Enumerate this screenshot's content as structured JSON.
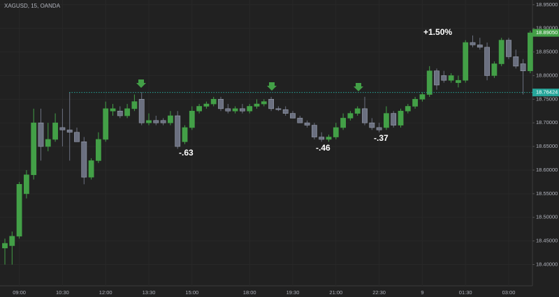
{
  "chart_data": {
    "type": "candlestick",
    "title": "XAGUSD, 15, OANDA",
    "up_color": "#43a047",
    "down_color": "#6b7080",
    "grid": true,
    "ylim": [
      18.355,
      18.96
    ],
    "yticks": [
      {
        "value": 18.4,
        "label": "18.40000"
      },
      {
        "value": 18.45,
        "label": "18.45000"
      },
      {
        "value": 18.5,
        "label": "18.50000"
      },
      {
        "value": 18.55,
        "label": "18.55000"
      },
      {
        "value": 18.6,
        "label": "18.60000"
      },
      {
        "value": 18.65,
        "label": "18.65000"
      },
      {
        "value": 18.7,
        "label": "18.70000"
      },
      {
        "value": 18.75,
        "label": "18.75000"
      },
      {
        "value": 18.8,
        "label": "18.80000"
      },
      {
        "value": 18.85,
        "label": "18.85000"
      },
      {
        "value": 18.9,
        "label": "18.90000"
      },
      {
        "value": 18.95,
        "label": "18.95000"
      }
    ],
    "categories": [
      null,
      null,
      "09:00",
      null,
      null,
      null,
      null,
      null,
      "10:30",
      null,
      null,
      null,
      null,
      null,
      "12:00",
      null,
      null,
      null,
      null,
      null,
      "13:30",
      null,
      null,
      null,
      null,
      null,
      "15:00",
      null,
      null,
      null,
      null,
      null,
      null,
      null,
      "18:00",
      null,
      null,
      null,
      null,
      null,
      "19:30",
      null,
      null,
      null,
      null,
      null,
      "21:00",
      null,
      null,
      null,
      null,
      null,
      "22:30",
      null,
      null,
      null,
      null,
      null,
      "9",
      null,
      null,
      null,
      null,
      null,
      "01:30",
      null,
      null,
      null,
      null,
      null,
      "03:00",
      null,
      null,
      null
    ],
    "open": [
      18.435,
      18.44,
      18.46,
      18.55,
      18.59,
      18.7,
      18.65,
      18.665,
      18.69,
      18.685,
      18.68,
      18.66,
      18.585,
      18.62,
      18.665,
      18.725,
      18.725,
      18.715,
      18.73,
      18.75,
      18.7,
      18.705,
      18.705,
      18.7,
      18.715,
      18.66,
      18.69,
      18.725,
      18.735,
      18.74,
      18.75,
      18.73,
      18.725,
      18.73,
      18.725,
      18.735,
      18.74,
      18.75,
      18.73,
      18.728,
      18.72,
      18.71,
      18.7,
      18.695,
      18.67,
      18.665,
      18.67,
      18.69,
      18.71,
      18.72,
      18.73,
      18.7,
      18.69,
      18.69,
      18.72,
      18.695,
      18.725,
      18.735,
      18.75,
      18.76,
      18.81,
      18.8,
      18.79,
      18.785,
      18.79,
      18.87,
      18.865,
      18.86,
      18.8,
      18.825,
      18.875,
      18.84,
      18.825,
      18.81
    ],
    "high": [
      18.455,
      18.47,
      18.575,
      18.6,
      18.73,
      18.73,
      18.7,
      18.72,
      18.73,
      18.765,
      18.69,
      18.67,
      18.625,
      18.68,
      18.745,
      18.74,
      18.735,
      18.74,
      18.76,
      18.765,
      18.72,
      18.715,
      18.71,
      18.725,
      18.725,
      18.695,
      18.735,
      18.74,
      18.745,
      18.755,
      18.755,
      18.74,
      18.735,
      18.74,
      18.74,
      18.75,
      18.75,
      18.755,
      18.735,
      18.735,
      18.725,
      18.715,
      18.705,
      18.7,
      18.68,
      18.675,
      18.7,
      18.72,
      18.725,
      18.735,
      18.755,
      18.71,
      18.7,
      18.735,
      18.725,
      18.73,
      18.74,
      18.755,
      18.765,
      18.82,
      18.815,
      18.81,
      18.805,
      18.8,
      18.875,
      18.885,
      18.88,
      18.87,
      18.83,
      18.88,
      18.88,
      18.855,
      18.835,
      18.895
    ],
    "low": [
      18.4,
      18.4,
      18.455,
      18.54,
      18.58,
      18.62,
      18.64,
      18.66,
      18.65,
      18.62,
      18.66,
      18.57,
      18.58,
      18.615,
      18.66,
      18.715,
      18.71,
      18.71,
      18.725,
      18.695,
      18.695,
      18.695,
      18.695,
      18.695,
      18.645,
      18.655,
      18.685,
      18.72,
      18.73,
      18.735,
      18.725,
      18.72,
      18.72,
      18.72,
      18.72,
      18.73,
      18.735,
      18.725,
      18.725,
      18.715,
      18.71,
      18.7,
      18.69,
      18.665,
      18.66,
      18.66,
      18.665,
      18.685,
      18.705,
      18.715,
      18.695,
      18.685,
      18.68,
      18.685,
      18.69,
      18.69,
      18.72,
      18.73,
      18.745,
      18.755,
      18.77,
      18.785,
      18.785,
      18.775,
      18.785,
      18.86,
      18.855,
      18.79,
      18.795,
      18.82,
      18.835,
      18.815,
      18.76,
      18.805
    ],
    "close": [
      18.445,
      18.46,
      18.57,
      18.59,
      18.7,
      18.65,
      18.665,
      18.7,
      18.685,
      18.68,
      18.66,
      18.585,
      18.62,
      18.665,
      18.73,
      18.73,
      18.715,
      18.73,
      18.745,
      18.7,
      18.705,
      18.7,
      18.7,
      18.715,
      18.65,
      18.69,
      18.725,
      18.735,
      18.74,
      18.75,
      18.73,
      18.725,
      18.73,
      18.725,
      18.735,
      18.74,
      18.745,
      18.73,
      18.728,
      18.72,
      18.71,
      18.7,
      18.695,
      18.67,
      18.665,
      18.67,
      18.69,
      18.71,
      18.72,
      18.73,
      18.7,
      18.69,
      18.685,
      18.72,
      18.695,
      18.725,
      18.735,
      18.75,
      18.76,
      18.81,
      18.78,
      18.79,
      18.8,
      18.79,
      18.87,
      18.865,
      18.86,
      18.8,
      18.825,
      18.875,
      18.84,
      18.82,
      18.81,
      18.8905
    ],
    "last_price": {
      "value": 18.8905,
      "label": "18.89050"
    },
    "level": {
      "value": 18.76424,
      "label": "18.76424"
    },
    "annotations": [
      "-.63",
      "-.46",
      "-.37",
      "+1.50%"
    ]
  }
}
